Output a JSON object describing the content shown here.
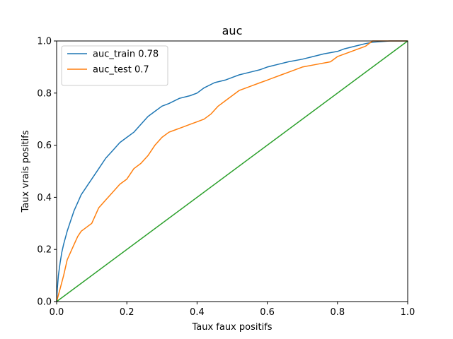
{
  "chart_data": {
    "type": "line",
    "title": "auc",
    "xlabel": "Taux faux positifs",
    "ylabel": "Taux vrais positifs",
    "xlim": [
      0,
      1
    ],
    "ylim": [
      0,
      1
    ],
    "xticks": [
      "0.0",
      "0.2",
      "0.4",
      "0.6",
      "0.8",
      "1.0"
    ],
    "yticks": [
      "0.0",
      "0.2",
      "0.4",
      "0.6",
      "0.8",
      "1.0"
    ],
    "grid": false,
    "legend_position": "upper-left",
    "colors": {
      "train": "#1f77b4",
      "test": "#ff7f0e",
      "diagonal": "#2ca02c"
    },
    "series": [
      {
        "name": "auc_train 0.78",
        "color": "#1f77b4",
        "x": [
          0,
          0.002,
          0.005,
          0.01,
          0.015,
          0.02,
          0.03,
          0.04,
          0.05,
          0.06,
          0.07,
          0.08,
          0.09,
          0.1,
          0.12,
          0.14,
          0.16,
          0.18,
          0.2,
          0.22,
          0.24,
          0.26,
          0.28,
          0.3,
          0.32,
          0.35,
          0.38,
          0.4,
          0.42,
          0.45,
          0.48,
          0.5,
          0.52,
          0.55,
          0.58,
          0.6,
          0.63,
          0.66,
          0.7,
          0.73,
          0.76,
          0.8,
          0.82,
          0.85,
          0.88,
          0.9,
          0.95,
          1.0
        ],
        "y": [
          0,
          0.05,
          0.1,
          0.15,
          0.19,
          0.22,
          0.27,
          0.31,
          0.35,
          0.38,
          0.41,
          0.43,
          0.45,
          0.47,
          0.51,
          0.55,
          0.58,
          0.61,
          0.63,
          0.65,
          0.68,
          0.71,
          0.73,
          0.75,
          0.76,
          0.78,
          0.79,
          0.8,
          0.82,
          0.84,
          0.85,
          0.86,
          0.87,
          0.88,
          0.89,
          0.9,
          0.91,
          0.92,
          0.93,
          0.94,
          0.95,
          0.96,
          0.97,
          0.98,
          0.99,
          0.995,
          1.0,
          1.0
        ]
      },
      {
        "name": "auc_test 0.7",
        "color": "#ff7f0e",
        "x": [
          0,
          0.01,
          0.02,
          0.03,
          0.04,
          0.05,
          0.06,
          0.07,
          0.08,
          0.1,
          0.11,
          0.12,
          0.14,
          0.16,
          0.18,
          0.2,
          0.22,
          0.24,
          0.26,
          0.28,
          0.3,
          0.32,
          0.34,
          0.36,
          0.38,
          0.4,
          0.42,
          0.44,
          0.46,
          0.48,
          0.5,
          0.52,
          0.54,
          0.56,
          0.58,
          0.6,
          0.62,
          0.64,
          0.66,
          0.7,
          0.74,
          0.78,
          0.8,
          0.82,
          0.84,
          0.86,
          0.88,
          0.9,
          1.0
        ],
        "y": [
          0,
          0.05,
          0.1,
          0.16,
          0.19,
          0.22,
          0.25,
          0.27,
          0.28,
          0.3,
          0.33,
          0.36,
          0.39,
          0.42,
          0.45,
          0.47,
          0.51,
          0.53,
          0.56,
          0.6,
          0.63,
          0.65,
          0.66,
          0.67,
          0.68,
          0.69,
          0.7,
          0.72,
          0.75,
          0.77,
          0.79,
          0.81,
          0.82,
          0.83,
          0.84,
          0.85,
          0.86,
          0.87,
          0.88,
          0.9,
          0.91,
          0.92,
          0.94,
          0.95,
          0.96,
          0.97,
          0.98,
          1.0,
          1.0
        ]
      },
      {
        "name": "",
        "color": "#2ca02c",
        "x": [
          0,
          1
        ],
        "y": [
          0,
          1
        ]
      }
    ]
  }
}
